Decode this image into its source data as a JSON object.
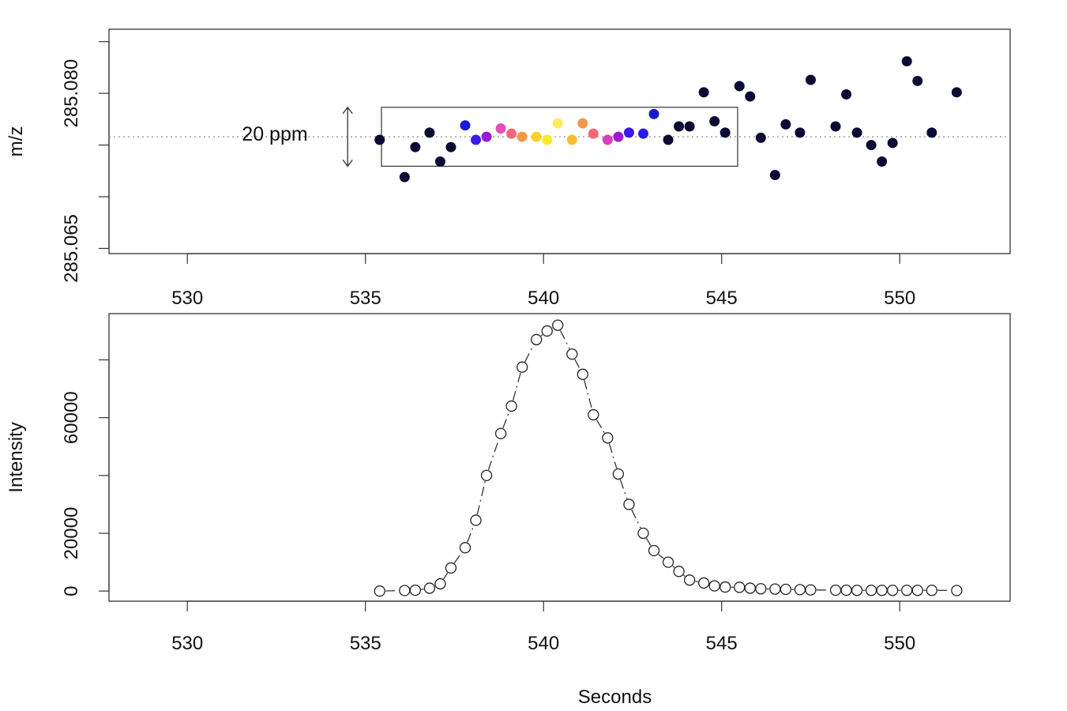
{
  "chart_data": [
    {
      "type": "scatter",
      "panel": "top",
      "ylabel": "m/z",
      "xlim": [
        527.8,
        553.1
      ],
      "ylim": [
        285.0645,
        285.0862
      ],
      "xticks": [
        530,
        535,
        540,
        545,
        550
      ],
      "xtick_labels": [
        "530",
        "535",
        "540",
        "545",
        "550"
      ],
      "yticks": [
        285.065,
        285.07,
        285.075,
        285.08,
        285.085
      ],
      "ytick_labels": [
        "285.065",
        "",
        "",
        "285.080",
        ""
      ],
      "reference_mz": 285.0758,
      "annotation": {
        "text": "20 ppm",
        "box_x": [
          535.45,
          545.45
        ],
        "box_y": [
          285.07295,
          285.07865
        ],
        "arrow_x": 534.5
      },
      "colors": {
        "outside": "#0a0a35"
      },
      "points": [
        {
          "x": 535.4,
          "y": 285.0755,
          "c": "#0a0a35"
        },
        {
          "x": 536.1,
          "y": 285.0719,
          "c": "#0a0a35"
        },
        {
          "x": 536.4,
          "y": 285.0748,
          "c": "#0a0a35"
        },
        {
          "x": 536.8,
          "y": 285.0762,
          "c": "#0a0a35"
        },
        {
          "x": 537.1,
          "y": 285.0734,
          "c": "#0a0a35"
        },
        {
          "x": 537.4,
          "y": 285.0748,
          "c": "#0a0a35"
        },
        {
          "x": 537.8,
          "y": 285.0769,
          "c": "#1a1ad0"
        },
        {
          "x": 538.1,
          "y": 285.0755,
          "c": "#3a1aee"
        },
        {
          "x": 538.4,
          "y": 285.0758,
          "c": "#9a1ad8"
        },
        {
          "x": 538.8,
          "y": 285.0766,
          "c": "#e050b8"
        },
        {
          "x": 539.1,
          "y": 285.0761,
          "c": "#f06878"
        },
        {
          "x": 539.4,
          "y": 285.0758,
          "c": "#f3984a"
        },
        {
          "x": 539.8,
          "y": 285.0758,
          "c": "#f8d12a"
        },
        {
          "x": 540.1,
          "y": 285.0755,
          "c": "#fbe92a"
        },
        {
          "x": 540.4,
          "y": 285.0771,
          "c": "#fbea60"
        },
        {
          "x": 540.8,
          "y": 285.0755,
          "c": "#f6bd30"
        },
        {
          "x": 541.1,
          "y": 285.0771,
          "c": "#f3984a"
        },
        {
          "x": 541.4,
          "y": 285.0761,
          "c": "#f06878"
        },
        {
          "x": 541.8,
          "y": 285.0755,
          "c": "#d940c0"
        },
        {
          "x": 542.1,
          "y": 285.0758,
          "c": "#9a1ad8"
        },
        {
          "x": 542.4,
          "y": 285.0762,
          "c": "#3a1aee"
        },
        {
          "x": 542.8,
          "y": 285.0761,
          "c": "#2a1aee"
        },
        {
          "x": 543.1,
          "y": 285.078,
          "c": "#1a1ad0"
        },
        {
          "x": 543.5,
          "y": 285.0755,
          "c": "#0a0a35"
        },
        {
          "x": 543.8,
          "y": 285.0768,
          "c": "#0a0a35"
        },
        {
          "x": 544.1,
          "y": 285.0768,
          "c": "#0a0a35"
        },
        {
          "x": 544.5,
          "y": 285.0801,
          "c": "#0a0a35"
        },
        {
          "x": 544.8,
          "y": 285.0773,
          "c": "#0a0a35"
        },
        {
          "x": 545.1,
          "y": 285.0762,
          "c": "#0a0a35"
        },
        {
          "x": 545.5,
          "y": 285.0807,
          "c": "#0a0a35"
        },
        {
          "x": 545.8,
          "y": 285.0797,
          "c": "#0a0a35"
        },
        {
          "x": 546.1,
          "y": 285.0757,
          "c": "#0a0a35"
        },
        {
          "x": 546.5,
          "y": 285.0721,
          "c": "#0a0a35"
        },
        {
          "x": 546.8,
          "y": 285.077,
          "c": "#0a0a35"
        },
        {
          "x": 547.2,
          "y": 285.0762,
          "c": "#0a0a35"
        },
        {
          "x": 547.5,
          "y": 285.0813,
          "c": "#0a0a35"
        },
        {
          "x": 548.2,
          "y": 285.0768,
          "c": "#0a0a35"
        },
        {
          "x": 548.5,
          "y": 285.0799,
          "c": "#0a0a35"
        },
        {
          "x": 548.8,
          "y": 285.0762,
          "c": "#0a0a35"
        },
        {
          "x": 549.2,
          "y": 285.075,
          "c": "#0a0a35"
        },
        {
          "x": 549.5,
          "y": 285.0734,
          "c": "#0a0a35"
        },
        {
          "x": 549.8,
          "y": 285.0752,
          "c": "#0a0a35"
        },
        {
          "x": 550.2,
          "y": 285.0831,
          "c": "#0a0a35"
        },
        {
          "x": 550.5,
          "y": 285.0812,
          "c": "#0a0a35"
        },
        {
          "x": 550.9,
          "y": 285.0762,
          "c": "#0a0a35"
        },
        {
          "x": 551.6,
          "y": 285.0801,
          "c": "#0a0a35"
        }
      ]
    },
    {
      "type": "line",
      "panel": "bottom",
      "ylabel": "Intensity",
      "xlabel": "Seconds",
      "xlim": [
        527.8,
        553.1
      ],
      "ylim": [
        -3500,
        96000
      ],
      "xticks": [
        530,
        535,
        540,
        545,
        550
      ],
      "xtick_labels": [
        "530",
        "535",
        "540",
        "545",
        "550"
      ],
      "yticks": [
        0,
        20000,
        40000,
        60000,
        80000
      ],
      "ytick_labels": [
        "0",
        "20000",
        "",
        "60000",
        ""
      ],
      "marker": "open-circle",
      "line_style": "dashdot",
      "x": [
        535.4,
        536.1,
        536.4,
        536.8,
        537.1,
        537.4,
        537.8,
        538.1,
        538.4,
        538.8,
        539.1,
        539.4,
        539.8,
        540.1,
        540.4,
        540.8,
        541.1,
        541.4,
        541.8,
        542.1,
        542.4,
        542.8,
        543.1,
        543.5,
        543.8,
        544.1,
        544.5,
        544.8,
        545.1,
        545.5,
        545.8,
        546.1,
        546.5,
        546.8,
        547.2,
        547.5,
        548.2,
        548.5,
        548.8,
        549.2,
        549.5,
        549.8,
        550.2,
        550.5,
        550.9,
        551.6
      ],
      "y": [
        0,
        200,
        300,
        1000,
        2500,
        8000,
        15000,
        24500,
        40000,
        54500,
        64000,
        77500,
        87000,
        90000,
        92000,
        82000,
        75000,
        61000,
        53000,
        40500,
        30000,
        20000,
        14000,
        10000,
        6800,
        3800,
        2800,
        1800,
        1400,
        1300,
        1000,
        800,
        700,
        600,
        500,
        400,
        300,
        300,
        250,
        250,
        250,
        250,
        250,
        250,
        250,
        200
      ]
    }
  ],
  "annotations": {
    "ppm_label": "20 ppm"
  }
}
